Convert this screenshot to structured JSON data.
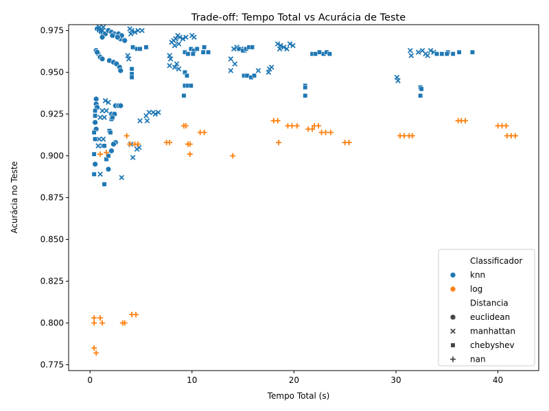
{
  "chart_data": {
    "type": "scatter",
    "title": "Trade-off: Tempo Total vs Acurácia de Teste",
    "xlabel": "Tempo Total (s)",
    "ylabel": "Acurácia no Teste",
    "xlim": [
      -2.1,
      44.0
    ],
    "ylim": [
      0.7715,
      0.9785
    ],
    "xticks": [
      0,
      10,
      20,
      30,
      40
    ],
    "yticks": [
      0.775,
      0.8,
      0.825,
      0.85,
      0.875,
      0.9,
      0.925,
      0.95,
      0.975
    ],
    "grid": false,
    "legend": {
      "position": "lower-right",
      "hue_title": "Classificador",
      "hue_entries": [
        {
          "label": "knn",
          "color": "#1f77b4"
        },
        {
          "label": "log",
          "color": "#ff7f0e"
        }
      ],
      "style_title": "Distancia",
      "style_entries": [
        {
          "label": "euclidean",
          "marker": "circle"
        },
        {
          "label": "manhattan",
          "marker": "x"
        },
        {
          "label": "chebyshev",
          "marker": "square"
        },
        {
          "label": "nan",
          "marker": "plus"
        }
      ]
    },
    "series": [
      {
        "classifier": "knn",
        "distance": "euclidean",
        "color": "#1f77b4",
        "marker": "circle",
        "points": [
          [
            0.7,
            0.976
          ],
          [
            0.9,
            0.975
          ],
          [
            1.1,
            0.974
          ],
          [
            1.3,
            0.973
          ],
          [
            1.5,
            0.973
          ],
          [
            1.2,
            0.971
          ],
          [
            1.8,
            0.975
          ],
          [
            2.1,
            0.974
          ],
          [
            2.4,
            0.973
          ],
          [
            2.8,
            0.973
          ],
          [
            3.0,
            0.97
          ],
          [
            3.4,
            0.969
          ],
          [
            3.1,
            0.972
          ],
          [
            2.7,
            0.971
          ],
          [
            2.2,
            0.972
          ],
          [
            0.6,
            0.963
          ],
          [
            0.8,
            0.961
          ],
          [
            1.0,
            0.959
          ],
          [
            1.2,
            0.958
          ],
          [
            1.9,
            0.957
          ],
          [
            2.3,
            0.956
          ],
          [
            2.6,
            0.955
          ],
          [
            2.9,
            0.953
          ],
          [
            3.0,
            0.951
          ],
          [
            0.7,
            0.962
          ],
          [
            0.6,
            0.934
          ],
          [
            0.6,
            0.931
          ],
          [
            0.7,
            0.929
          ],
          [
            0.5,
            0.92
          ],
          [
            0.6,
            0.916
          ],
          [
            0.5,
            0.91
          ],
          [
            2.5,
            0.93
          ],
          [
            2.8,
            0.93
          ],
          [
            3.0,
            0.93
          ],
          [
            2.1,
            0.925
          ],
          [
            2.4,
            0.925
          ],
          [
            2.5,
            0.908
          ],
          [
            2.3,
            0.907
          ],
          [
            1.8,
            0.892
          ],
          [
            0.5,
            0.895
          ],
          [
            2.1,
            0.903
          ]
        ]
      },
      {
        "classifier": "knn",
        "distance": "manhattan",
        "color": "#1f77b4",
        "marker": "x",
        "points": [
          [
            0.9,
            0.977
          ],
          [
            1.1,
            0.976
          ],
          [
            1.2,
            0.975
          ],
          [
            3.9,
            0.976
          ],
          [
            4.1,
            0.975
          ],
          [
            4.4,
            0.974
          ],
          [
            4.7,
            0.975
          ],
          [
            5.1,
            0.975
          ],
          [
            4.0,
            0.973
          ],
          [
            3.7,
            0.96
          ],
          [
            3.8,
            0.958
          ],
          [
            1.3,
            0.977
          ],
          [
            8.2,
            0.969
          ],
          [
            8.4,
            0.97
          ],
          [
            8.6,
            0.972
          ],
          [
            8.8,
            0.971
          ],
          [
            9.1,
            0.97
          ],
          [
            9.4,
            0.971
          ],
          [
            8.0,
            0.968
          ],
          [
            8.3,
            0.966
          ],
          [
            8.7,
            0.967
          ],
          [
            10.0,
            0.972
          ],
          [
            10.2,
            0.971
          ],
          [
            7.8,
            0.96
          ],
          [
            7.9,
            0.958
          ],
          [
            8.5,
            0.955
          ],
          [
            7.8,
            0.954
          ],
          [
            8.3,
            0.953
          ],
          [
            8.7,
            0.952
          ],
          [
            14.1,
            0.964
          ],
          [
            14.4,
            0.965
          ],
          [
            14.8,
            0.964
          ],
          [
            15.1,
            0.963
          ],
          [
            13.8,
            0.958
          ],
          [
            14.2,
            0.955
          ],
          [
            13.8,
            0.951
          ],
          [
            16.5,
            0.951
          ],
          [
            17.5,
            0.95
          ],
          [
            17.6,
            0.952
          ],
          [
            17.8,
            0.953
          ],
          [
            18.4,
            0.967
          ],
          [
            18.7,
            0.966
          ],
          [
            19.0,
            0.965
          ],
          [
            19.3,
            0.964
          ],
          [
            19.6,
            0.967
          ],
          [
            19.9,
            0.966
          ],
          [
            18.6,
            0.964
          ],
          [
            30.1,
            0.947
          ],
          [
            30.2,
            0.945
          ],
          [
            31.4,
            0.963
          ],
          [
            31.5,
            0.96
          ],
          [
            32.2,
            0.962
          ],
          [
            32.6,
            0.963
          ],
          [
            32.9,
            0.961
          ],
          [
            33.1,
            0.96
          ],
          [
            33.4,
            0.963
          ],
          [
            33.7,
            0.962
          ],
          [
            1.5,
            0.933
          ],
          [
            1.8,
            0.932
          ],
          [
            1.2,
            0.927
          ],
          [
            1.6,
            0.927
          ],
          [
            1.0,
            0.923
          ],
          [
            1.4,
            0.923
          ],
          [
            0.9,
            0.91
          ],
          [
            1.3,
            0.91
          ],
          [
            0.8,
            0.906
          ],
          [
            1.2,
            0.906
          ],
          [
            4.9,
            0.921
          ],
          [
            5.5,
            0.924
          ],
          [
            5.8,
            0.926
          ],
          [
            6.2,
            0.926
          ],
          [
            6.4,
            0.925
          ],
          [
            6.7,
            0.926
          ],
          [
            5.6,
            0.921
          ],
          [
            4.0,
            0.907
          ],
          [
            4.8,
            0.905
          ],
          [
            4.6,
            0.904
          ],
          [
            4.2,
            0.899
          ],
          [
            3.1,
            0.887
          ],
          [
            1.0,
            0.889
          ]
        ]
      },
      {
        "classifier": "knn",
        "distance": "chebyshev",
        "color": "#1f77b4",
        "marker": "square",
        "points": [
          [
            4.2,
            0.965
          ],
          [
            4.6,
            0.964
          ],
          [
            4.9,
            0.964
          ],
          [
            5.5,
            0.965
          ],
          [
            4.1,
            0.952
          ],
          [
            4.1,
            0.949
          ],
          [
            4.1,
            0.947
          ],
          [
            9.3,
            0.962
          ],
          [
            9.6,
            0.961
          ],
          [
            9.9,
            0.964
          ],
          [
            10.2,
            0.963
          ],
          [
            10.5,
            0.964
          ],
          [
            10.1,
            0.961
          ],
          [
            11.1,
            0.962
          ],
          [
            11.2,
            0.965
          ],
          [
            11.6,
            0.962
          ],
          [
            9.3,
            0.95
          ],
          [
            9.5,
            0.948
          ],
          [
            9.3,
            0.942
          ],
          [
            9.6,
            0.942
          ],
          [
            9.9,
            0.942
          ],
          [
            9.2,
            0.936
          ],
          [
            14.6,
            0.964
          ],
          [
            15.0,
            0.963
          ],
          [
            15.3,
            0.964
          ],
          [
            15.6,
            0.965
          ],
          [
            15.9,
            0.965
          ],
          [
            15.1,
            0.948
          ],
          [
            15.4,
            0.948
          ],
          [
            15.8,
            0.947
          ],
          [
            16.1,
            0.948
          ],
          [
            21.1,
            0.942
          ],
          [
            21.1,
            0.941
          ],
          [
            21.1,
            0.936
          ],
          [
            21.8,
            0.961
          ],
          [
            22.1,
            0.961
          ],
          [
            22.5,
            0.962
          ],
          [
            22.9,
            0.961
          ],
          [
            23.2,
            0.962
          ],
          [
            23.5,
            0.961
          ],
          [
            32.4,
            0.941
          ],
          [
            32.5,
            0.94
          ],
          [
            32.4,
            0.936
          ],
          [
            34.0,
            0.961
          ],
          [
            34.5,
            0.961
          ],
          [
            35.1,
            0.962
          ],
          [
            35.6,
            0.961
          ],
          [
            36.2,
            0.962
          ],
          [
            37.5,
            0.962
          ],
          [
            35.0,
            0.961
          ],
          [
            0.4,
            0.914
          ],
          [
            0.5,
            0.91
          ],
          [
            0.4,
            0.901
          ],
          [
            0.4,
            0.889
          ],
          [
            0.5,
            0.927
          ],
          [
            0.5,
            0.924
          ],
          [
            1.4,
            0.906
          ],
          [
            1.6,
            0.898
          ],
          [
            1.8,
            0.9
          ],
          [
            1.9,
            0.915
          ],
          [
            2.0,
            0.914
          ],
          [
            2.1,
            0.922
          ],
          [
            2.2,
            0.923
          ],
          [
            1.4,
            0.883
          ]
        ]
      },
      {
        "classifier": "log",
        "distance": "nan",
        "color": "#ff7f0e",
        "marker": "plus",
        "points": [
          [
            0.4,
            0.803
          ],
          [
            0.4,
            0.8
          ],
          [
            1.0,
            0.803
          ],
          [
            1.2,
            0.8
          ],
          [
            0.4,
            0.785
          ],
          [
            0.6,
            0.782
          ],
          [
            3.2,
            0.8
          ],
          [
            3.4,
            0.8
          ],
          [
            4.1,
            0.805
          ],
          [
            4.5,
            0.805
          ],
          [
            1.0,
            0.901
          ],
          [
            1.6,
            0.902
          ],
          [
            3.6,
            0.912
          ],
          [
            3.9,
            0.907
          ],
          [
            4.4,
            0.907
          ],
          [
            4.7,
            0.907
          ],
          [
            7.5,
            0.908
          ],
          [
            7.8,
            0.908
          ],
          [
            9.2,
            0.918
          ],
          [
            9.4,
            0.918
          ],
          [
            9.6,
            0.907
          ],
          [
            9.8,
            0.907
          ],
          [
            9.8,
            0.901
          ],
          [
            10.8,
            0.914
          ],
          [
            11.2,
            0.914
          ],
          [
            14.0,
            0.9
          ],
          [
            18.0,
            0.921
          ],
          [
            18.4,
            0.921
          ],
          [
            18.5,
            0.908
          ],
          [
            19.4,
            0.918
          ],
          [
            19.8,
            0.918
          ],
          [
            20.3,
            0.918
          ],
          [
            21.4,
            0.916
          ],
          [
            21.8,
            0.916
          ],
          [
            22.0,
            0.918
          ],
          [
            22.4,
            0.918
          ],
          [
            22.7,
            0.914
          ],
          [
            23.1,
            0.914
          ],
          [
            23.6,
            0.914
          ],
          [
            25.0,
            0.908
          ],
          [
            25.4,
            0.908
          ],
          [
            30.4,
            0.912
          ],
          [
            30.8,
            0.912
          ],
          [
            31.3,
            0.912
          ],
          [
            31.6,
            0.912
          ],
          [
            36.1,
            0.921
          ],
          [
            36.4,
            0.921
          ],
          [
            36.8,
            0.921
          ],
          [
            40.0,
            0.918
          ],
          [
            40.4,
            0.918
          ],
          [
            40.8,
            0.918
          ],
          [
            40.9,
            0.912
          ],
          [
            41.3,
            0.912
          ],
          [
            41.7,
            0.912
          ]
        ]
      }
    ]
  }
}
